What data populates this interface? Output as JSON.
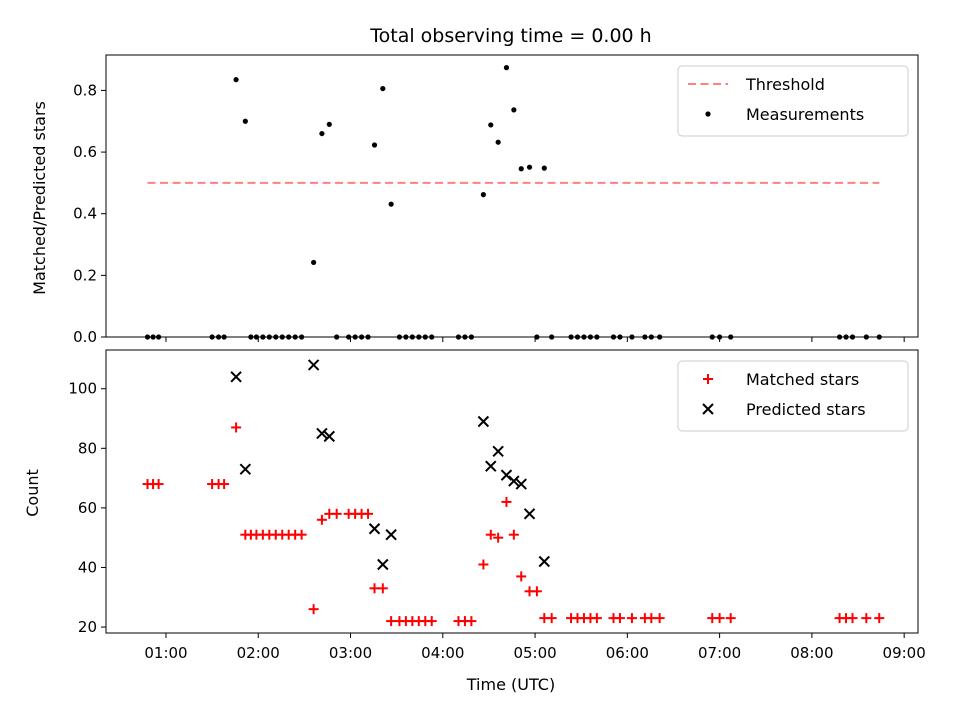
{
  "chart_data": [
    {
      "type": "scatter",
      "title": "Total observing time = 0.00 h",
      "ylabel": "Matched/Predicted stars",
      "xlabel": "",
      "xlim": [
        0.35,
        9.15
      ],
      "ylim": [
        0.0,
        0.915
      ],
      "yticks": [
        0.0,
        0.2,
        0.4,
        0.6,
        0.8
      ],
      "ytick_labels": [
        "0.0",
        "0.2",
        "0.4",
        "0.6",
        "0.8"
      ],
      "grid": false,
      "legend": {
        "position": "top-right",
        "entries": [
          "Threshold",
          "Measurements"
        ]
      },
      "threshold": {
        "name": "Threshold",
        "y": 0.5,
        "x": [
          0.8,
          8.73
        ],
        "color": "#ff8080",
        "style": "dashed"
      },
      "series": [
        {
          "name": "Measurements",
          "color": "#000000",
          "marker": "dot",
          "points": [
            [
              0.8,
              0
            ],
            [
              0.86,
              0
            ],
            [
              0.92,
              0
            ],
            [
              1.5,
              0
            ],
            [
              1.57,
              0
            ],
            [
              1.63,
              0
            ],
            [
              1.76,
              0.835
            ],
            [
              1.86,
              0.7
            ],
            [
              1.92,
              0
            ],
            [
              1.98,
              0
            ],
            [
              2.05,
              0
            ],
            [
              2.12,
              0
            ],
            [
              2.19,
              0
            ],
            [
              2.26,
              0
            ],
            [
              2.33,
              0
            ],
            [
              2.4,
              0
            ],
            [
              2.47,
              0
            ],
            [
              2.6,
              0.242
            ],
            [
              2.69,
              0.66
            ],
            [
              2.77,
              0.69
            ],
            [
              2.85,
              0
            ],
            [
              2.98,
              0
            ],
            [
              3.05,
              0
            ],
            [
              3.12,
              0
            ],
            [
              3.19,
              0
            ],
            [
              3.26,
              0.623
            ],
            [
              3.35,
              0.806
            ],
            [
              3.44,
              0.431
            ],
            [
              3.53,
              0
            ],
            [
              3.6,
              0
            ],
            [
              3.67,
              0
            ],
            [
              3.74,
              0
            ],
            [
              3.81,
              0
            ],
            [
              3.88,
              0
            ],
            [
              4.17,
              0
            ],
            [
              4.24,
              0
            ],
            [
              4.31,
              0
            ],
            [
              4.44,
              0.462
            ],
            [
              4.52,
              0.688
            ],
            [
              4.6,
              0.632
            ],
            [
              4.69,
              0.874
            ],
            [
              4.77,
              0.737
            ],
            [
              4.85,
              0.546
            ],
            [
              4.94,
              0.551
            ],
            [
              5.02,
              0
            ],
            [
              5.1,
              0.548
            ],
            [
              5.18,
              0
            ],
            [
              5.39,
              0
            ],
            [
              5.46,
              0
            ],
            [
              5.53,
              0
            ],
            [
              5.6,
              0
            ],
            [
              5.67,
              0
            ],
            [
              5.85,
              0
            ],
            [
              5.92,
              0
            ],
            [
              6.05,
              0
            ],
            [
              6.19,
              0
            ],
            [
              6.26,
              0
            ],
            [
              6.35,
              0
            ],
            [
              6.92,
              0
            ],
            [
              7.0,
              0
            ],
            [
              7.12,
              0
            ],
            [
              8.3,
              0
            ],
            [
              8.37,
              0
            ],
            [
              8.44,
              0
            ],
            [
              8.59,
              0
            ],
            [
              8.73,
              0
            ]
          ]
        }
      ]
    },
    {
      "type": "scatter",
      "title": "",
      "ylabel": "Count",
      "xlabel": "Time (UTC)",
      "xlim": [
        0.35,
        9.15
      ],
      "ylim": [
        18.0,
        113.0
      ],
      "yticks": [
        20,
        40,
        60,
        80,
        100
      ],
      "ytick_labels": [
        "20",
        "40",
        "60",
        "80",
        "100"
      ],
      "xticks": [
        1,
        2,
        3,
        4,
        5,
        6,
        7,
        8,
        9
      ],
      "xtick_labels": [
        "01:00",
        "02:00",
        "03:00",
        "04:00",
        "05:00",
        "06:00",
        "07:00",
        "08:00",
        "09:00"
      ],
      "grid": false,
      "legend": {
        "position": "top-right",
        "entries": [
          "Matched stars",
          "Predicted stars"
        ]
      },
      "series": [
        {
          "name": "Matched stars",
          "color": "#ff0000",
          "marker": "plus",
          "points": [
            [
              0.8,
              68
            ],
            [
              0.86,
              68
            ],
            [
              0.92,
              68
            ],
            [
              1.5,
              68
            ],
            [
              1.57,
              68
            ],
            [
              1.63,
              68
            ],
            [
              1.76,
              87
            ],
            [
              1.86,
              51
            ],
            [
              1.92,
              51
            ],
            [
              1.98,
              51
            ],
            [
              2.05,
              51
            ],
            [
              2.12,
              51
            ],
            [
              2.19,
              51
            ],
            [
              2.26,
              51
            ],
            [
              2.33,
              51
            ],
            [
              2.4,
              51
            ],
            [
              2.47,
              51
            ],
            [
              2.6,
              26
            ],
            [
              2.69,
              56
            ],
            [
              2.77,
              58
            ],
            [
              2.85,
              58
            ],
            [
              2.98,
              58
            ],
            [
              3.05,
              58
            ],
            [
              3.12,
              58
            ],
            [
              3.19,
              58
            ],
            [
              3.26,
              33
            ],
            [
              3.35,
              33
            ],
            [
              3.44,
              22
            ],
            [
              3.53,
              22
            ],
            [
              3.6,
              22
            ],
            [
              3.67,
              22
            ],
            [
              3.74,
              22
            ],
            [
              3.81,
              22
            ],
            [
              3.88,
              22
            ],
            [
              4.17,
              22
            ],
            [
              4.24,
              22
            ],
            [
              4.31,
              22
            ],
            [
              4.44,
              41
            ],
            [
              4.52,
              51
            ],
            [
              4.6,
              50
            ],
            [
              4.69,
              62
            ],
            [
              4.77,
              51
            ],
            [
              4.85,
              37
            ],
            [
              4.94,
              32
            ],
            [
              5.02,
              32
            ],
            [
              5.1,
              23
            ],
            [
              5.18,
              23
            ],
            [
              5.39,
              23
            ],
            [
              5.46,
              23
            ],
            [
              5.53,
              23
            ],
            [
              5.6,
              23
            ],
            [
              5.67,
              23
            ],
            [
              5.85,
              23
            ],
            [
              5.92,
              23
            ],
            [
              6.05,
              23
            ],
            [
              6.19,
              23
            ],
            [
              6.26,
              23
            ],
            [
              6.35,
              23
            ],
            [
              6.92,
              23
            ],
            [
              7.0,
              23
            ],
            [
              7.12,
              23
            ],
            [
              8.3,
              23
            ],
            [
              8.37,
              23
            ],
            [
              8.44,
              23
            ],
            [
              8.59,
              23
            ],
            [
              8.73,
              23
            ]
          ]
        },
        {
          "name": "Predicted stars",
          "color": "#000000",
          "marker": "x",
          "points": [
            [
              1.76,
              104
            ],
            [
              1.86,
              73
            ],
            [
              2.6,
              108
            ],
            [
              2.69,
              85
            ],
            [
              2.77,
              84
            ],
            [
              3.26,
              53
            ],
            [
              3.35,
              41
            ],
            [
              3.44,
              51
            ],
            [
              4.44,
              89
            ],
            [
              4.52,
              74
            ],
            [
              4.6,
              79
            ],
            [
              4.69,
              71
            ],
            [
              4.77,
              69
            ],
            [
              4.85,
              68
            ],
            [
              4.94,
              58
            ],
            [
              5.1,
              42
            ]
          ]
        }
      ]
    }
  ]
}
